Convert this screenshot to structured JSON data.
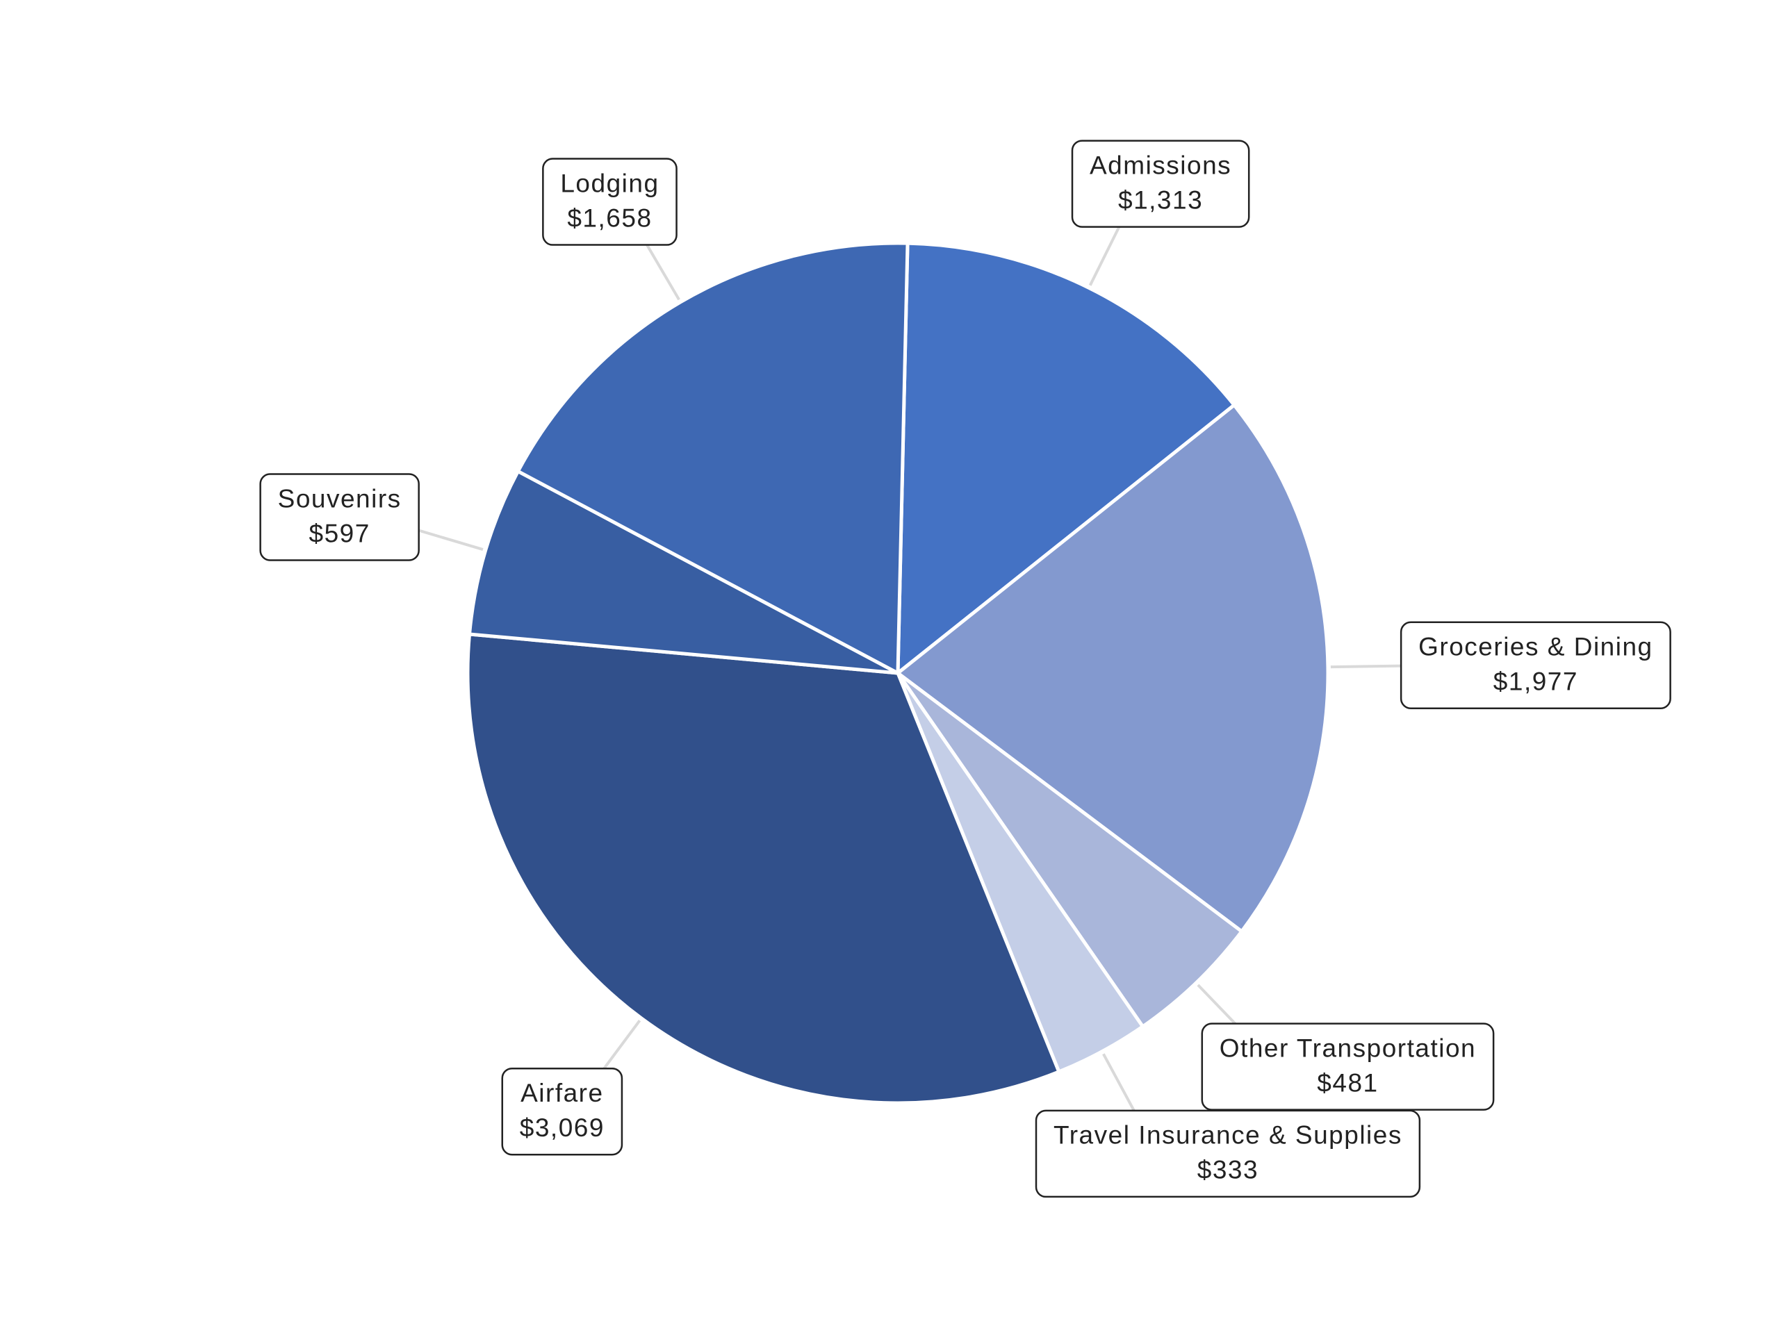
{
  "chart_data": {
    "type": "pie",
    "categories": [
      "Admissions",
      "Groceries & Dining",
      "Other Transportation",
      "Travel Insurance & Supplies",
      "Airfare",
      "Souvenirs",
      "Lodging"
    ],
    "values": [
      1313,
      1977,
      481,
      333,
      3069,
      597,
      1658
    ],
    "value_labels": [
      "$1,313",
      "$1,977",
      "$481",
      "$333",
      "$3,069",
      "$597",
      "$1,658"
    ],
    "colors": [
      "#4472c4",
      "#8399cf",
      "#a9b6da",
      "#c4cee7",
      "#31508b",
      "#385ea2",
      "#3e68b3"
    ]
  }
}
